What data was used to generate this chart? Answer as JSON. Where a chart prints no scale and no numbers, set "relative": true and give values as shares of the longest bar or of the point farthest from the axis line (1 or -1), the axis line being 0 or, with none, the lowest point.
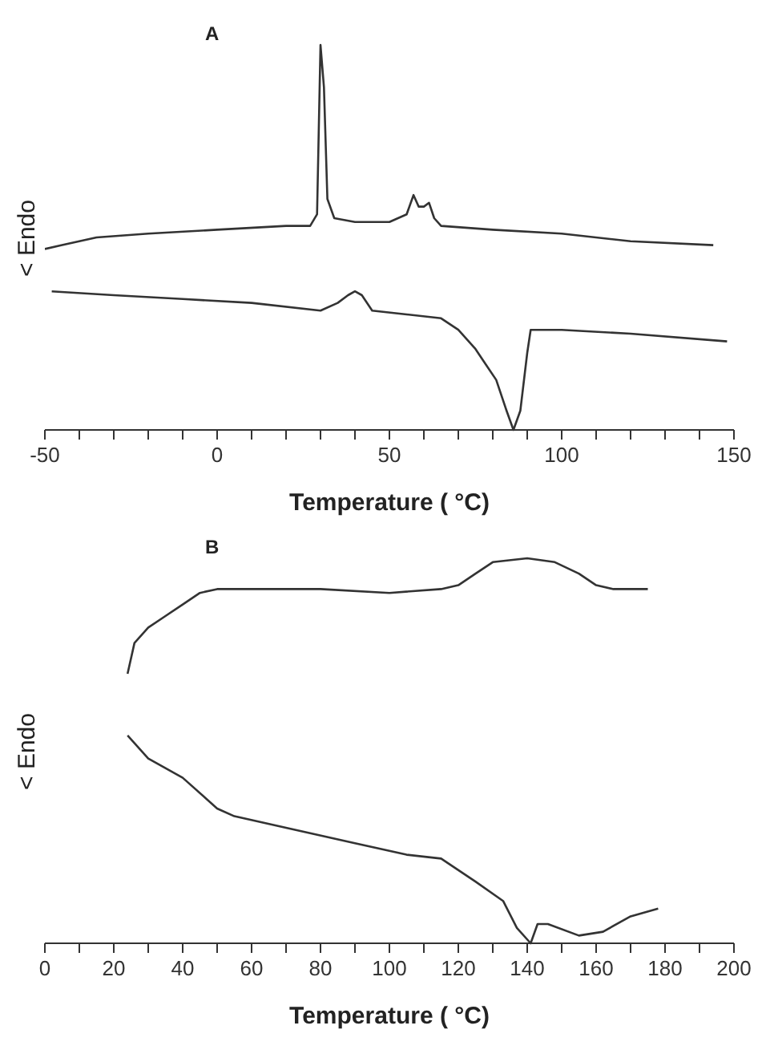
{
  "chart_data": [
    {
      "type": "line",
      "title": "A",
      "xlabel": "Temperature ( °C)",
      "ylabel": "< Endo",
      "relative": true,
      "xlim": [
        -50,
        150
      ],
      "xticks": [
        -50,
        {
          "value": -40,
          "label": null
        },
        {
          "value": -30,
          "label": null
        },
        {
          "value": -20,
          "label": null
        },
        {
          "value": -10,
          "label": null
        },
        0,
        {
          "value": 10,
          "label": null
        },
        {
          "value": 20,
          "label": null
        },
        {
          "value": 30,
          "label": null
        },
        {
          "value": 40,
          "label": null
        },
        50,
        {
          "value": 60,
          "label": null
        },
        {
          "value": 70,
          "label": null
        },
        {
          "value": 80,
          "label": null
        },
        {
          "value": 90,
          "label": null
        },
        100,
        {
          "value": 110,
          "label": null
        },
        {
          "value": 120,
          "label": null
        },
        {
          "value": 130,
          "label": null
        },
        {
          "value": 140,
          "label": null
        },
        150
      ],
      "series": [
        {
          "color": "#333333",
          "x": [
            -50,
            -45,
            -40,
            -35,
            -20,
            0,
            20,
            27,
            29,
            30,
            31,
            32,
            34,
            40,
            50,
            55,
            57,
            58.5,
            60,
            61.5,
            63,
            65,
            80,
            100,
            120,
            144
          ],
          "values": [
            0.47,
            0.48,
            0.49,
            0.5,
            0.51,
            0.52,
            0.53,
            0.53,
            0.56,
            1.0,
            0.89,
            0.6,
            0.55,
            0.54,
            0.54,
            0.56,
            0.61,
            0.58,
            0.58,
            0.59,
            0.55,
            0.53,
            0.52,
            0.51,
            0.49,
            0.48
          ]
        },
        {
          "color": "#333333",
          "x": [
            -48,
            -30,
            -10,
            10,
            30,
            35,
            38,
            40,
            42,
            45,
            55,
            65,
            70,
            75,
            78,
            81,
            84,
            86,
            88,
            90,
            91,
            100,
            120,
            148
          ],
          "values": [
            0.36,
            0.35,
            0.34,
            0.33,
            0.31,
            0.33,
            0.35,
            0.36,
            0.35,
            0.31,
            0.3,
            0.29,
            0.26,
            0.21,
            0.17,
            0.13,
            0.05,
            0,
            0.05,
            0.2,
            0.26,
            0.26,
            0.25,
            0.23
          ]
        }
      ]
    },
    {
      "type": "line",
      "title": "B",
      "xlabel": "Temperature ( °C)",
      "ylabel": "< Endo",
      "relative": true,
      "xlim": [
        0,
        200
      ],
      "xticks": [
        0,
        {
          "value": 10,
          "label": null
        },
        20,
        {
          "value": 30,
          "label": null
        },
        40,
        {
          "value": 50,
          "label": null
        },
        60,
        {
          "value": 70,
          "label": null
        },
        80,
        {
          "value": 90,
          "label": null
        },
        100,
        {
          "value": 110,
          "label": null
        },
        120,
        {
          "value": 130,
          "label": null
        },
        140,
        {
          "value": 150,
          "label": null
        },
        160,
        {
          "value": 170,
          "label": null
        },
        180,
        {
          "value": 190,
          "label": null
        },
        200
      ],
      "series": [
        {
          "color": "#333333",
          "x": [
            24,
            26,
            30,
            35,
            40,
            45,
            50,
            60,
            80,
            100,
            115,
            120,
            125,
            130,
            140,
            148,
            155,
            160,
            165,
            175
          ],
          "values": [
            0.7,
            0.78,
            0.82,
            0.85,
            0.88,
            0.91,
            0.92,
            0.92,
            0.92,
            0.91,
            0.92,
            0.93,
            0.96,
            0.99,
            1.0,
            0.99,
            0.96,
            0.93,
            0.92,
            0.92
          ]
        },
        {
          "color": "#333333",
          "x": [
            24,
            30,
            40,
            50,
            55,
            70,
            90,
            105,
            115,
            125,
            133,
            137,
            141,
            143,
            146,
            155,
            162,
            170,
            178
          ],
          "values": [
            0.54,
            0.48,
            0.43,
            0.35,
            0.33,
            0.3,
            0.26,
            0.23,
            0.22,
            0.16,
            0.11,
            0.04,
            0,
            0.05,
            0.05,
            0.02,
            0.03,
            0.07,
            0.09
          ]
        }
      ]
    }
  ]
}
